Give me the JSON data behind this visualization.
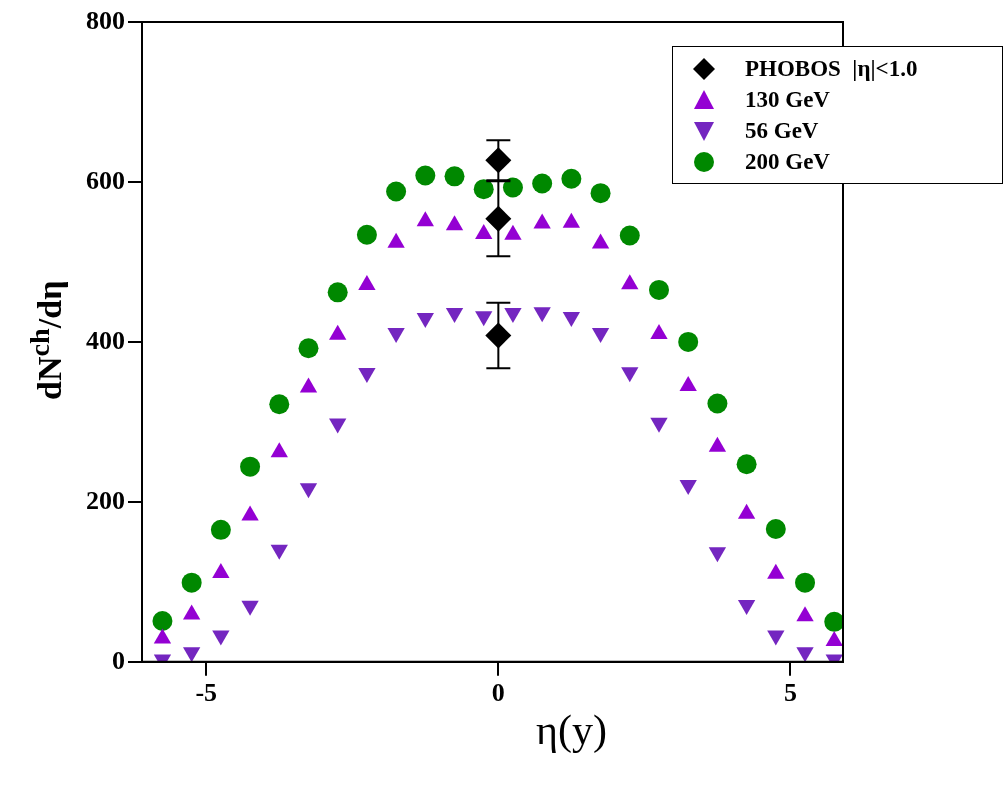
{
  "chart_data": {
    "type": "scatter",
    "xlabel": "η(y)",
    "ylabel": "dN$^{ch}$/dη",
    "xlim": [
      -6.1,
      5.9
    ],
    "xticks": [
      -5,
      0,
      5
    ],
    "ylim": [
      0,
      800
    ],
    "yticks": [
      0,
      200,
      400,
      600,
      800
    ],
    "legend": "top right",
    "grid": false,
    "series": [
      {
        "name": "PHOBOS  |η|<1.0",
        "color": "#000000",
        "marker": "diamond",
        "x": [
          0,
          0,
          0
        ],
        "values": [
          627,
          554,
          408
        ],
        "errors": [
          25,
          47,
          41
        ]
      },
      {
        "name": "130 GeV",
        "color": "#9400d3",
        "marker": "triangle",
        "x": [
          -5.75,
          -5.25,
          -4.75,
          -4.25,
          -3.75,
          -3.25,
          -2.75,
          -2.25,
          -1.75,
          -1.25,
          -0.75,
          -0.25,
          0.25,
          0.75,
          1.25,
          1.75,
          2.25,
          2.75,
          3.25,
          3.75,
          4.25,
          4.75,
          5.25,
          5.75
        ],
        "values": [
          29,
          59,
          111,
          183,
          262,
          343,
          409,
          471,
          524,
          551,
          546,
          535,
          534,
          548,
          549,
          523,
          472,
          410,
          345,
          269,
          185,
          110,
          57,
          26
        ]
      },
      {
        "name": "56 GeV",
        "color": "#7426c0",
        "marker": "triangle-down",
        "x": [
          -5.75,
          -5.25,
          -4.75,
          -4.25,
          -3.75,
          -3.25,
          -2.75,
          -2.25,
          -1.75,
          -1.25,
          -0.75,
          -0.25,
          0.25,
          0.75,
          1.25,
          1.75,
          2.25,
          2.75,
          3.25,
          3.75,
          4.25,
          4.75,
          5.25,
          5.75
        ],
        "values": [
          3,
          12,
          33,
          70,
          140,
          217,
          298,
          361,
          411,
          430,
          436,
          432,
          436,
          437,
          431,
          411,
          362,
          299,
          221,
          137,
          71,
          33,
          12,
          3
        ]
      },
      {
        "name": "200 GeV",
        "color": "#008800",
        "marker": "circle",
        "x": [
          -5.75,
          -5.25,
          -4.75,
          -4.25,
          -3.75,
          -3.25,
          -2.75,
          -2.25,
          -1.75,
          -1.25,
          -0.75,
          -0.25,
          0.25,
          0.75,
          1.25,
          1.75,
          2.25,
          2.75,
          3.25,
          3.75,
          4.25,
          4.75,
          5.25,
          5.75
        ],
        "values": [
          51,
          99,
          165,
          244,
          322,
          392,
          462,
          534,
          588,
          608,
          607,
          591,
          593,
          598,
          604,
          586,
          533,
          465,
          400,
          323,
          247,
          166,
          99,
          50
        ]
      }
    ]
  }
}
